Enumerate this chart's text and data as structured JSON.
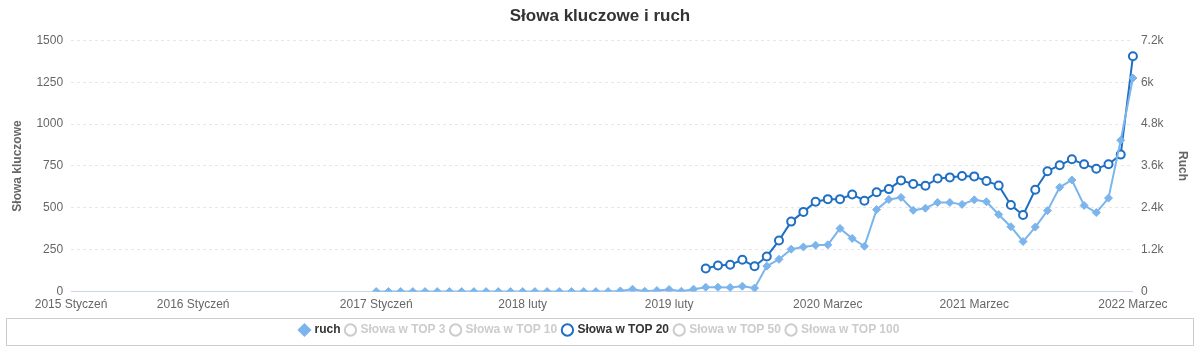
{
  "chart_data": {
    "type": "line",
    "title": "Słowa kluczowe i ruch",
    "ylabel": "Słowa kluczowe",
    "y2label": "Ruch",
    "categories": [
      "2015 Styczeń",
      null,
      null,
      null,
      null,
      null,
      null,
      null,
      null,
      null,
      "2016 Styczeń",
      null,
      null,
      null,
      null,
      null,
      null,
      null,
      null,
      null,
      null,
      null,
      null,
      null,
      null,
      "2017 Styczeń",
      null,
      null,
      null,
      null,
      null,
      null,
      null,
      null,
      null,
      null,
      null,
      "2018 luty",
      null,
      null,
      null,
      null,
      null,
      null,
      null,
      null,
      null,
      null,
      null,
      "2019 luty",
      null,
      null,
      null,
      null,
      null,
      null,
      null,
      null,
      null,
      null,
      null,
      null,
      "2020 Marzec",
      null,
      null,
      null,
      null,
      null,
      null,
      null,
      null,
      null,
      null,
      null,
      "2021 Marzec",
      null,
      null,
      null,
      null,
      null,
      null,
      null,
      null,
      null,
      null,
      null,
      null,
      "2022 Marzec"
    ],
    "series": [
      {
        "name": "ruch",
        "color": "#7cb5ec",
        "axis": "y2",
        "marker": "diamond",
        "values": [
          null,
          null,
          null,
          null,
          null,
          null,
          null,
          null,
          null,
          null,
          null,
          null,
          null,
          null,
          null,
          null,
          null,
          null,
          null,
          null,
          null,
          null,
          null,
          null,
          null,
          0,
          0,
          0,
          0,
          0,
          0,
          0,
          0,
          0,
          0,
          0,
          0,
          0,
          0,
          0,
          0,
          0,
          0,
          0,
          0,
          20,
          70,
          10,
          30,
          60,
          10,
          70,
          125,
          125,
          120,
          155,
          100,
          730,
          925,
          1215,
          1280,
          1330,
          1340,
          1810,
          1525,
          1300,
          2350,
          2640,
          2700,
          2330,
          2390,
          2555,
          2555,
          2500,
          2630,
          2575,
          2210,
          1860,
          1435,
          1850,
          2320,
          2990,
          3200,
          2470,
          2265,
          2680,
          4340,
          6120
        ]
      },
      {
        "name": "Słowa w TOP 3",
        "color": "#cccccc",
        "marker": "circle",
        "values": [
          null,
          null,
          null,
          null,
          null,
          null,
          null,
          null,
          null,
          null,
          null,
          null,
          null,
          null,
          null,
          null,
          null,
          null,
          null,
          null,
          null,
          null,
          null,
          null,
          null,
          null,
          null,
          null,
          null,
          null,
          null,
          null,
          null,
          null,
          null,
          null,
          null,
          null,
          null,
          null,
          null,
          null,
          null,
          null,
          null,
          null,
          null,
          null,
          null,
          null,
          null,
          null,
          null,
          null,
          null,
          null,
          null,
          null,
          null,
          null,
          null,
          null,
          null,
          null,
          null,
          null,
          null,
          null,
          null,
          null,
          null,
          null,
          null,
          null,
          null,
          null,
          null,
          null,
          null,
          null,
          null,
          null,
          null,
          null,
          null,
          null,
          null,
          null
        ]
      },
      {
        "name": "Słowa w TOP 10",
        "color": "#cccccc",
        "marker": "circle",
        "values": [
          null,
          null,
          null,
          null,
          null,
          null,
          null,
          null,
          null,
          null,
          null,
          null,
          null,
          null,
          null,
          null,
          null,
          null,
          null,
          null,
          null,
          null,
          null,
          null,
          null,
          null,
          null,
          null,
          null,
          null,
          null,
          null,
          null,
          null,
          null,
          null,
          null,
          null,
          null,
          null,
          null,
          null,
          null,
          null,
          null,
          null,
          null,
          null,
          null,
          null,
          null,
          null,
          null,
          null,
          null,
          null,
          null,
          null,
          null,
          null,
          null,
          null,
          null,
          null,
          null,
          null,
          null,
          null,
          null,
          null,
          null,
          null,
          null,
          null,
          null,
          null,
          null,
          null,
          null,
          null,
          null,
          null,
          null,
          null,
          null,
          null,
          null,
          null
        ]
      },
      {
        "name": "Słowa w TOP 20",
        "color": "#1f6fc2",
        "marker": "circle",
        "values": [
          null,
          null,
          null,
          null,
          null,
          null,
          null,
          null,
          null,
          null,
          null,
          null,
          null,
          null,
          null,
          null,
          null,
          null,
          null,
          null,
          null,
          null,
          null,
          null,
          null,
          null,
          null,
          null,
          null,
          null,
          null,
          null,
          null,
          null,
          null,
          null,
          null,
          null,
          null,
          null,
          null,
          null,
          null,
          null,
          null,
          null,
          null,
          null,
          null,
          null,
          null,
          null,
          138,
          156,
          160,
          190,
          151,
          210,
          305,
          418,
          476,
          537,
          552,
          552,
          580,
          543,
          593,
          612,
          664,
          643,
          632,
          675,
          682,
          690,
          688,
          660,
          634,
          517,
          457,
          608,
          719,
          755,
          790,
          760,
          734,
          760,
          818,
          1405
        ]
      },
      {
        "name": "Słowa w TOP 50",
        "color": "#cccccc",
        "marker": "circle",
        "values": [
          null,
          null,
          null,
          null,
          null,
          null,
          null,
          null,
          null,
          null,
          null,
          null,
          null,
          null,
          null,
          null,
          null,
          null,
          null,
          null,
          null,
          null,
          null,
          null,
          null,
          null,
          null,
          null,
          null,
          null,
          null,
          null,
          null,
          null,
          null,
          null,
          null,
          null,
          null,
          null,
          null,
          null,
          null,
          null,
          null,
          null,
          null,
          null,
          null,
          null,
          null,
          null,
          null,
          null,
          null,
          null,
          null,
          null,
          null,
          null,
          null,
          null,
          null,
          null,
          null,
          null,
          null,
          null,
          null,
          null,
          null,
          null,
          null,
          null,
          null,
          null,
          null,
          null,
          null,
          null,
          null,
          null,
          null,
          null,
          null,
          null,
          null,
          null
        ]
      },
      {
        "name": "Słowa w TOP 100",
        "color": "#cccccc",
        "marker": "circle",
        "values": [
          null,
          null,
          null,
          null,
          null,
          null,
          null,
          null,
          null,
          null,
          null,
          null,
          null,
          null,
          null,
          null,
          null,
          null,
          null,
          null,
          null,
          null,
          null,
          null,
          null,
          null,
          null,
          null,
          null,
          null,
          null,
          null,
          null,
          null,
          null,
          null,
          null,
          null,
          null,
          null,
          null,
          null,
          null,
          null,
          null,
          null,
          null,
          null,
          null,
          null,
          null,
          null,
          null,
          null,
          null,
          null,
          null,
          null,
          null,
          null,
          null,
          null,
          null,
          null,
          null,
          null,
          null,
          null,
          null,
          null,
          null,
          null,
          null,
          null,
          null,
          null,
          null,
          null,
          null,
          null,
          null,
          null,
          null,
          null,
          null,
          null,
          null,
          null
        ]
      }
    ],
    "ylim": [
      0,
      1500
    ],
    "yticks": [
      0,
      250,
      500,
      750,
      1000,
      1250,
      1500
    ],
    "y2lim": [
      0,
      7200
    ],
    "y2ticks": [
      0,
      {
        "value": 1200,
        "label": "1.2k"
      },
      {
        "value": 2400,
        "label": "2.4k"
      },
      {
        "value": 3600,
        "label": "3.6k"
      },
      {
        "value": 4800,
        "label": "4.8k"
      },
      {
        "value": 6000,
        "label": "6k"
      },
      {
        "value": 7200,
        "label": "7.2k"
      }
    ],
    "grid": "y",
    "legend": "bottom"
  }
}
